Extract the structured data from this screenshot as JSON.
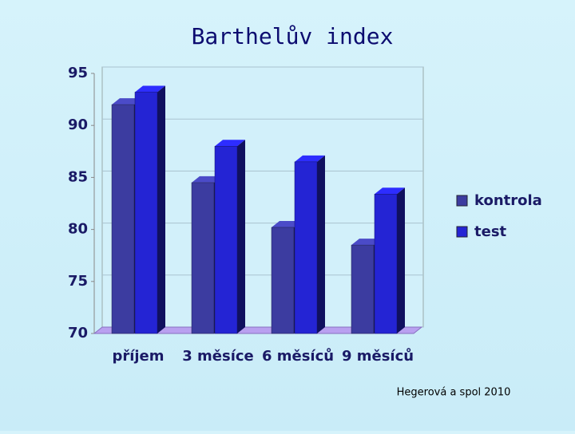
{
  "chart_data": {
    "type": "bar3d",
    "title": "Barthelův index",
    "categories": [
      "příjem",
      "3 měsíce",
      "6 měsíců",
      "9 měsíců"
    ],
    "series": [
      {
        "name": "kontrola",
        "color": "#3c3ca0",
        "values": [
          92,
          84.5,
          80.2,
          78.5
        ]
      },
      {
        "name": "test",
        "color": "#2424d4",
        "values": [
          93.2,
          88,
          86.5,
          83.4
        ]
      }
    ],
    "ylim": [
      70,
      95
    ],
    "yticks": [
      70,
      75,
      80,
      85,
      90,
      95
    ],
    "grid": true,
    "legend": "right",
    "source": "Hegerová a spol 2010"
  }
}
